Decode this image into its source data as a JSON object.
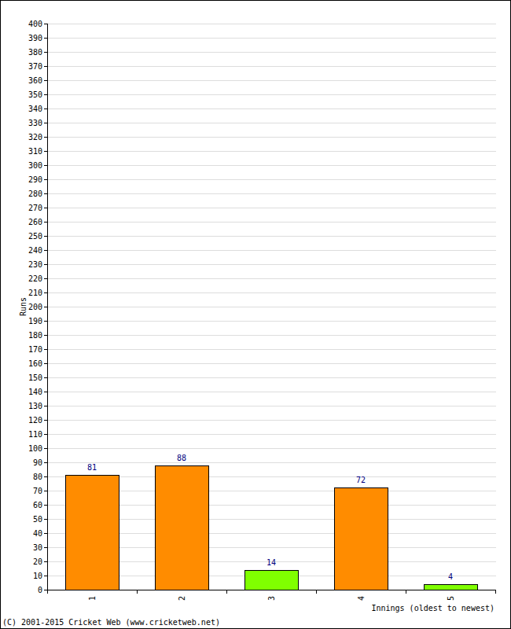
{
  "chart_data": {
    "type": "bar",
    "x_label": "Innings (oldest to newest)",
    "y_label": "Runs",
    "credit": "(C) 2001-2015 Cricket Web (www.cricketweb.net)",
    "categories": [
      "1",
      "2",
      "3",
      "4",
      "5"
    ],
    "values": [
      81,
      88,
      14,
      72,
      4
    ],
    "colors": [
      "#ff8c00",
      "#ff8c00",
      "#80ff00",
      "#ff8c00",
      "#80ff00"
    ],
    "ylim": [
      0,
      400
    ],
    "yticks": [
      0,
      10,
      20,
      30,
      40,
      50,
      60,
      70,
      80,
      90,
      100,
      110,
      120,
      130,
      140,
      150,
      160,
      170,
      180,
      190,
      200,
      210,
      220,
      230,
      240,
      250,
      260,
      270,
      280,
      290,
      300,
      310,
      320,
      330,
      340,
      350,
      360,
      370,
      380,
      390,
      400
    ],
    "grid": true,
    "data_labels": true
  }
}
